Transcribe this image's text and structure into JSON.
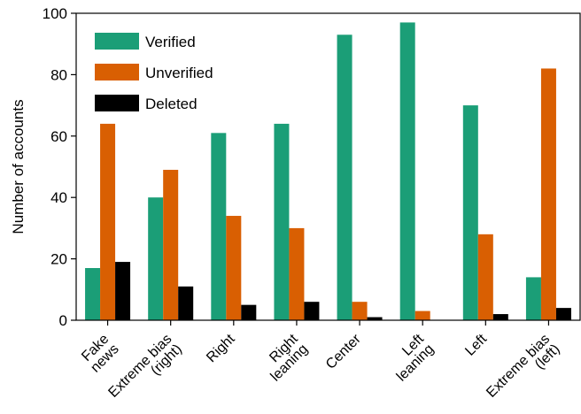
{
  "chart_data": {
    "type": "bar",
    "title": "",
    "xlabel": "",
    "ylabel": "Number of accounts",
    "ylim": [
      0,
      100
    ],
    "yticks": [
      0,
      20,
      40,
      60,
      80,
      100
    ],
    "grid": false,
    "legend_position": "top-left",
    "categories": [
      [
        "Fake",
        "news"
      ],
      [
        "Extreme bias",
        "(right)"
      ],
      [
        "Right"
      ],
      [
        "Right",
        "leaning"
      ],
      [
        "Center"
      ],
      [
        "Left",
        "leaning"
      ],
      [
        "Left"
      ],
      [
        "Extreme bias",
        "(left)"
      ]
    ],
    "series": [
      {
        "name": "Verified",
        "color": "#1b9e77",
        "values": [
          17,
          40,
          61,
          64,
          93,
          97,
          70,
          14
        ]
      },
      {
        "name": "Unverified",
        "color": "#d95f02",
        "values": [
          64,
          49,
          34,
          30,
          6,
          3,
          28,
          82
        ]
      },
      {
        "name": "Deleted",
        "color": "#000000",
        "values": [
          19,
          11,
          5,
          6,
          1,
          0,
          2,
          4
        ]
      }
    ]
  }
}
